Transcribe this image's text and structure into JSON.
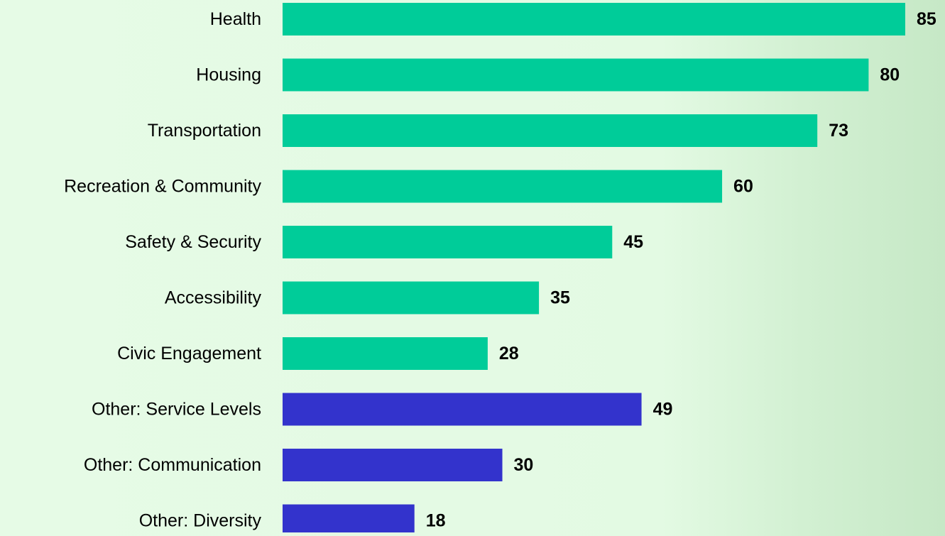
{
  "chart_data": {
    "type": "bar",
    "orientation": "horizontal",
    "categories": [
      "Health",
      "Housing",
      "Transportation",
      "Recreation & Community",
      "Safety & Security",
      "Accessibility",
      "Civic Engagement",
      "Other: Service Levels",
      "Other: Communication",
      "Other: Diversity"
    ],
    "values": [
      85,
      80,
      73,
      60,
      45,
      35,
      28,
      49,
      30,
      18
    ],
    "bar_colors": [
      "#00cc99",
      "#00cc99",
      "#00cc99",
      "#00cc99",
      "#00cc99",
      "#00cc99",
      "#00cc99",
      "#3333cc",
      "#3333cc",
      "#3333cc"
    ],
    "data_labels": true,
    "xlim": [
      0,
      85
    ],
    "grid": false,
    "legend": "none"
  },
  "colors": {
    "primary_bar": "#00cc99",
    "other_bar": "#3333cc",
    "background": "#e3fae3"
  }
}
